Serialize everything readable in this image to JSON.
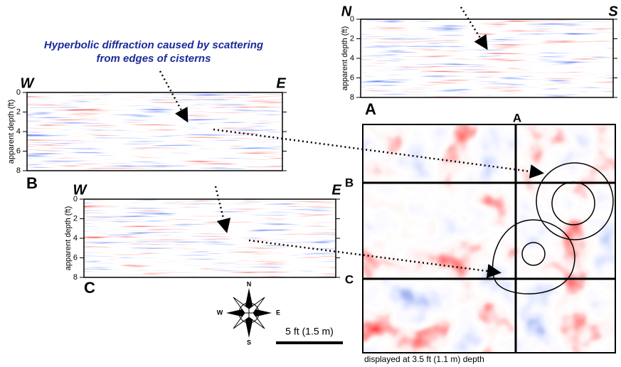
{
  "annotation": {
    "lines": [
      "Hyperbolic diffraction caused by scattering",
      "from edges of cisterns"
    ]
  },
  "profiles": [
    {
      "label": "A",
      "left": "N",
      "right": "S",
      "axis_label": "apparent depth (ft)",
      "ticks": [
        0,
        2,
        4,
        6,
        8
      ]
    },
    {
      "label": "B",
      "left": "W",
      "right": "E",
      "axis_label": "apparent depth (ft)",
      "ticks": [
        0,
        2,
        4,
        6,
        8
      ]
    },
    {
      "label": "C",
      "left": "W",
      "right": "E",
      "axis_label": "apparent depth (ft)",
      "ticks": [
        0,
        2,
        4,
        6,
        8
      ]
    }
  ],
  "map": {
    "labels": [
      "A",
      "B",
      "C"
    ],
    "caption": "displayed at 3.5 ft (1.1 m) depth"
  },
  "compass": {
    "n": "N",
    "s": "S",
    "e": "E",
    "w": "W"
  },
  "scale_bar": "5 ft (1.5 m)"
}
